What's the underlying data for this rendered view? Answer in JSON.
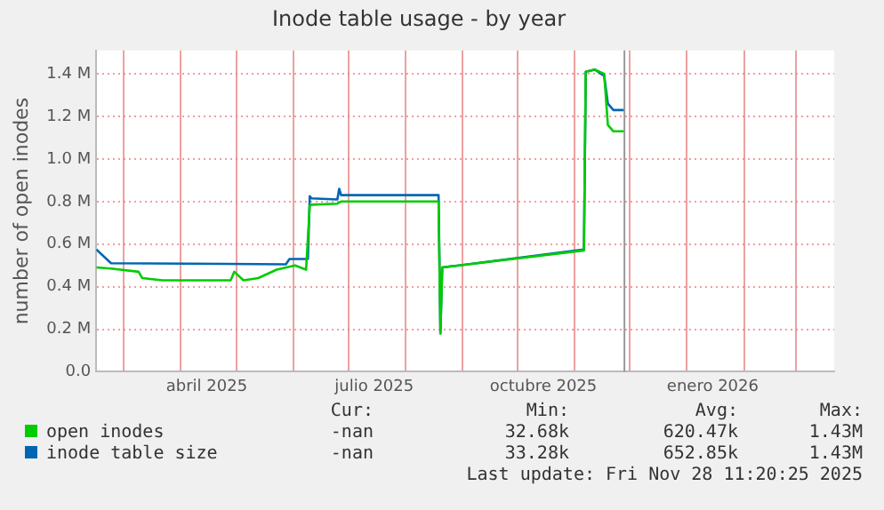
{
  "chart_data": {
    "type": "line",
    "title": "Inode table usage - by year",
    "ylabel": "number of open inodes",
    "xlim": [
      "2025-02-14",
      "2026-03-22"
    ],
    "xticks": [
      {
        "value": "2025-03-01",
        "label": null
      },
      {
        "value": "2025-04-01",
        "label": null
      },
      {
        "value": "2025-04-15",
        "label": "abril 2025"
      },
      {
        "value": "2025-05-01",
        "label": null
      },
      {
        "value": "2025-06-01",
        "label": null
      },
      {
        "value": "2025-07-01",
        "label": null
      },
      {
        "value": "2025-07-15",
        "label": "julio 2025"
      },
      {
        "value": "2025-08-01",
        "label": null
      },
      {
        "value": "2025-09-01",
        "label": null
      },
      {
        "value": "2025-10-01",
        "label": null
      },
      {
        "value": "2025-10-15",
        "label": "octubre 2025"
      },
      {
        "value": "2025-11-01",
        "label": null
      },
      {
        "value": "2025-12-01",
        "label": null
      },
      {
        "value": "2026-01-01",
        "label": null
      },
      {
        "value": "2026-01-15",
        "label": "enero 2026"
      },
      {
        "value": "2026-02-01",
        "label": null
      },
      {
        "value": "2026-03-01",
        "label": null
      }
    ],
    "ylim": [
      0,
      1510000
    ],
    "yticks": [
      {
        "value": 0,
        "label": "0.0"
      },
      {
        "value": 200000,
        "label": "0.2 M"
      },
      {
        "value": 400000,
        "label": "0.4 M"
      },
      {
        "value": 600000,
        "label": "0.6 M"
      },
      {
        "value": 800000,
        "label": "0.8 M"
      },
      {
        "value": 1000000,
        "label": "1.0 M"
      },
      {
        "value": 1200000,
        "label": "1.2 M"
      },
      {
        "value": 1400000,
        "label": "1.4 M"
      }
    ],
    "grid": true,
    "legend": "bottom",
    "marker": "none",
    "line_style": "solid",
    "ref_lines": [
      {
        "axis": "x",
        "value": "2025-11-28",
        "color": "#999999"
      }
    ],
    "series": [
      {
        "name": "open inodes",
        "color": "#00cc00",
        "x": [
          "2025-02-14",
          "2025-02-22",
          "2025-03-09",
          "2025-03-11",
          "2025-03-22",
          "2025-04-28",
          "2025-04-30",
          "2025-05-05",
          "2025-05-13",
          "2025-05-23",
          "2025-06-02",
          "2025-06-08",
          "2025-06-10",
          "2025-06-11",
          "2025-06-25",
          "2025-06-27",
          "2025-08-19",
          "2025-08-20",
          "2025-08-21",
          "2025-11-06",
          "2025-11-07",
          "2025-11-12",
          "2025-11-17",
          "2025-11-19",
          "2025-11-22",
          "2025-11-28"
        ],
        "values": [
          490000,
          485000,
          470000,
          440000,
          430000,
          430000,
          470000,
          430000,
          440000,
          480000,
          500000,
          480000,
          780000,
          785000,
          790000,
          800000,
          800000,
          180000,
          490000,
          570000,
          1410000,
          1420000,
          1400000,
          1160000,
          1130000,
          1130000
        ]
      },
      {
        "name": "inode table size",
        "color": "#0066b3",
        "x": [
          "2025-02-14",
          "2025-02-22",
          "2025-05-28",
          "2025-05-30",
          "2025-06-09",
          "2025-06-10",
          "2025-06-11",
          "2025-06-25",
          "2025-06-26",
          "2025-06-27",
          "2025-08-19",
          "2025-08-20",
          "2025-08-21",
          "2025-11-06",
          "2025-11-07",
          "2025-11-12",
          "2025-11-17",
          "2025-11-19",
          "2025-11-22",
          "2025-11-28"
        ],
        "values": [
          575000,
          510000,
          505000,
          530000,
          530000,
          825000,
          815000,
          810000,
          860000,
          830000,
          830000,
          180000,
          490000,
          575000,
          1410000,
          1420000,
          1390000,
          1260000,
          1230000,
          1230000
        ]
      }
    ],
    "annotations": [
      "Cur:",
      "Min:",
      "Avg:",
      "Max:",
      "-nan",
      "32.68k",
      "620.47k",
      "1.43M",
      "-nan",
      "33.28k",
      "652.85k",
      "1.43M",
      "Last update: Fri Nov 28 11:20:25 2025"
    ]
  }
}
